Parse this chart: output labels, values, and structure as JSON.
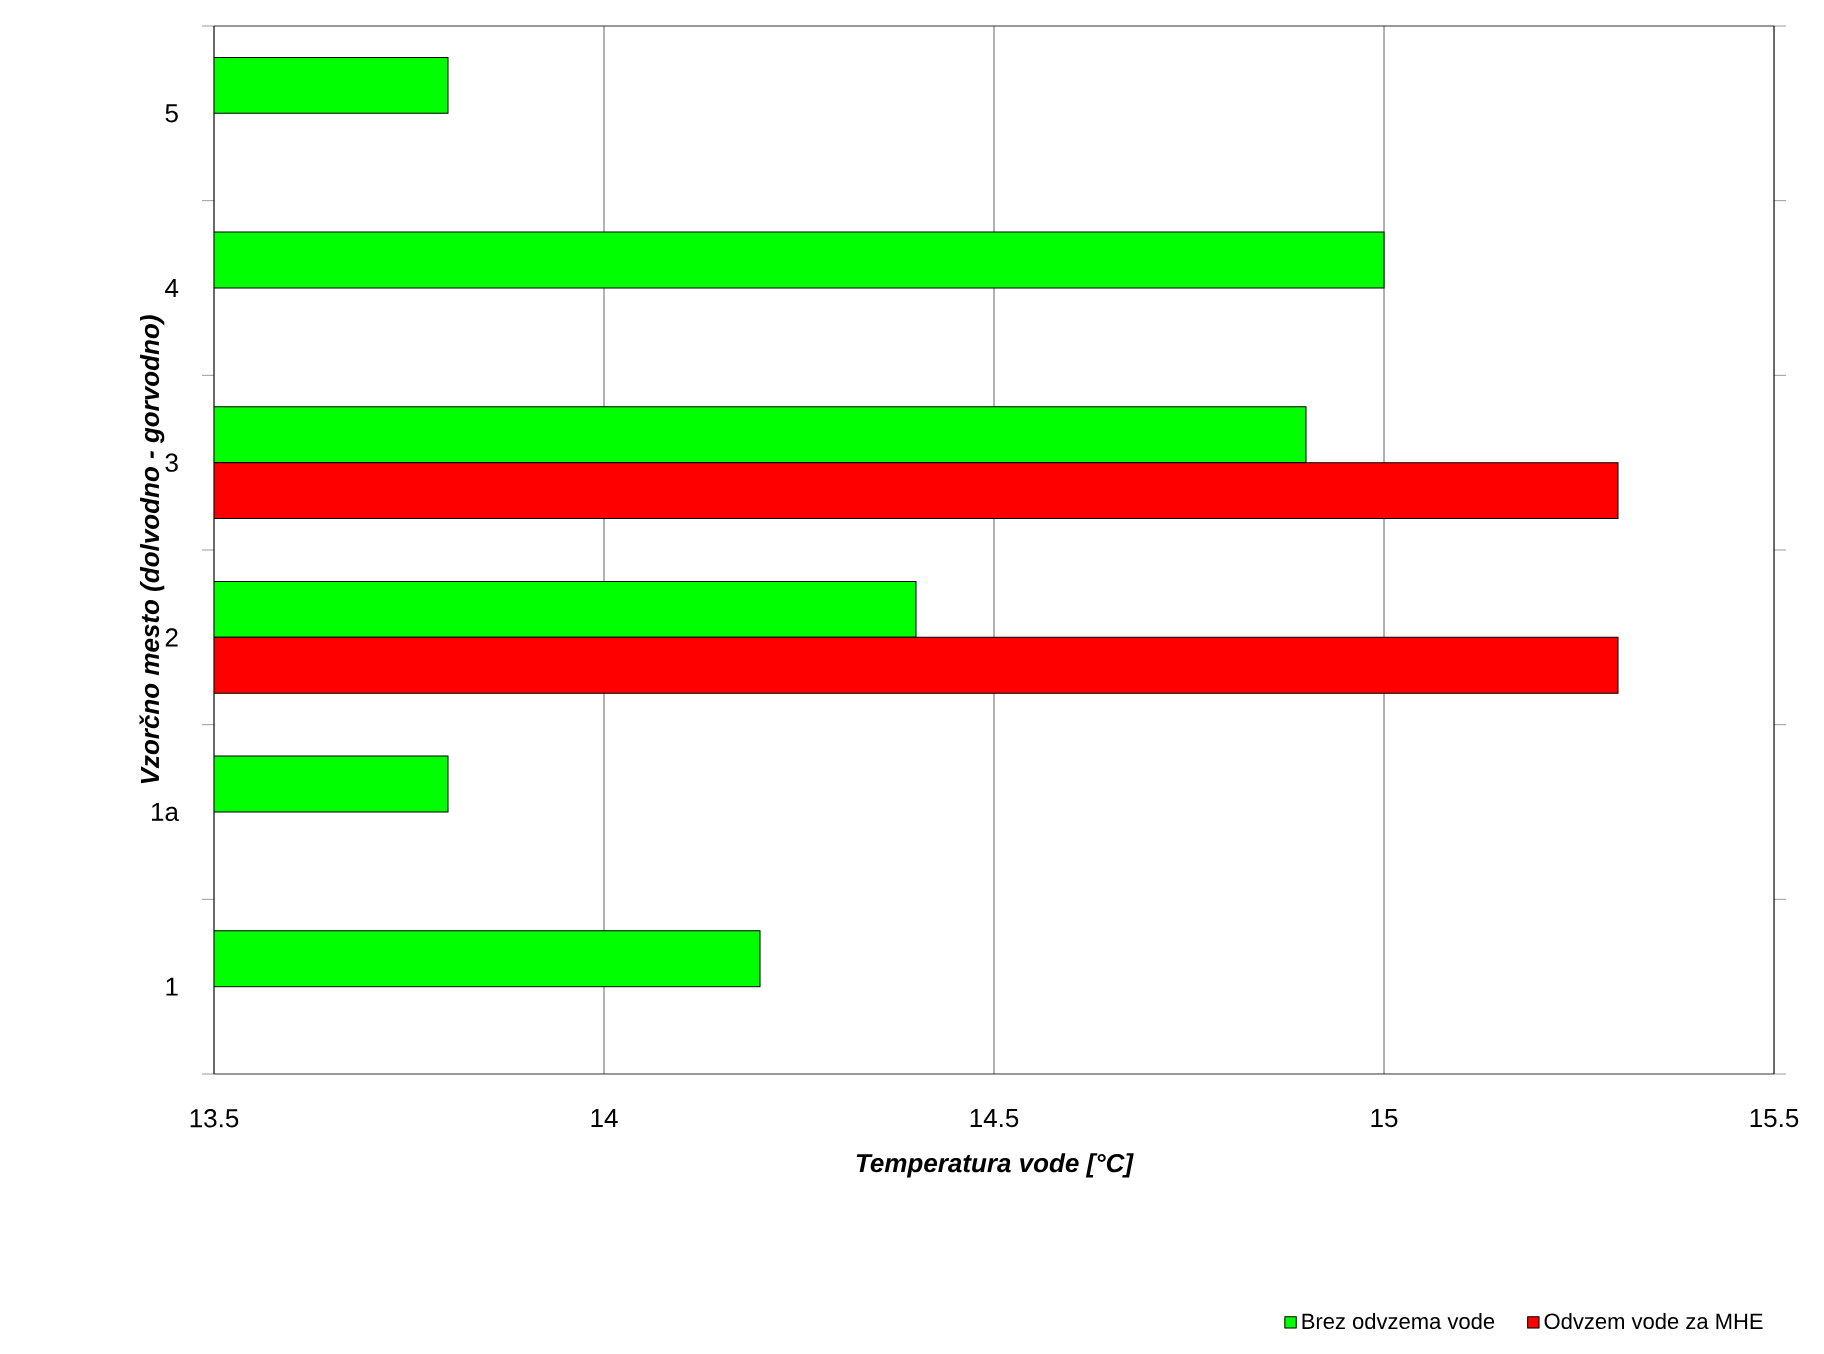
{
  "chart_data": {
    "type": "bar",
    "orientation": "horizontal",
    "xlabel": "Temperatura vode [°C]",
    "ylabel": "Vzorčno mesto (dolvodno - gorvodno)",
    "categories": [
      "5",
      "4",
      "3",
      "2",
      "1a",
      "1"
    ],
    "series": [
      {
        "name": "Brez odvzema vode",
        "color": "#00ff00",
        "values": [
          13.8,
          15.0,
          14.9,
          14.4,
          13.8,
          14.2
        ]
      },
      {
        "name": "Odvzem vode za MHE",
        "color": "#ff0000",
        "values": [
          null,
          null,
          15.3,
          15.3,
          null,
          null
        ]
      }
    ],
    "xlim": [
      13.5,
      15.5
    ],
    "xticks": [
      13.5,
      14,
      14.5,
      15,
      15.5
    ],
    "grid": "x",
    "legend": "bottom right"
  }
}
